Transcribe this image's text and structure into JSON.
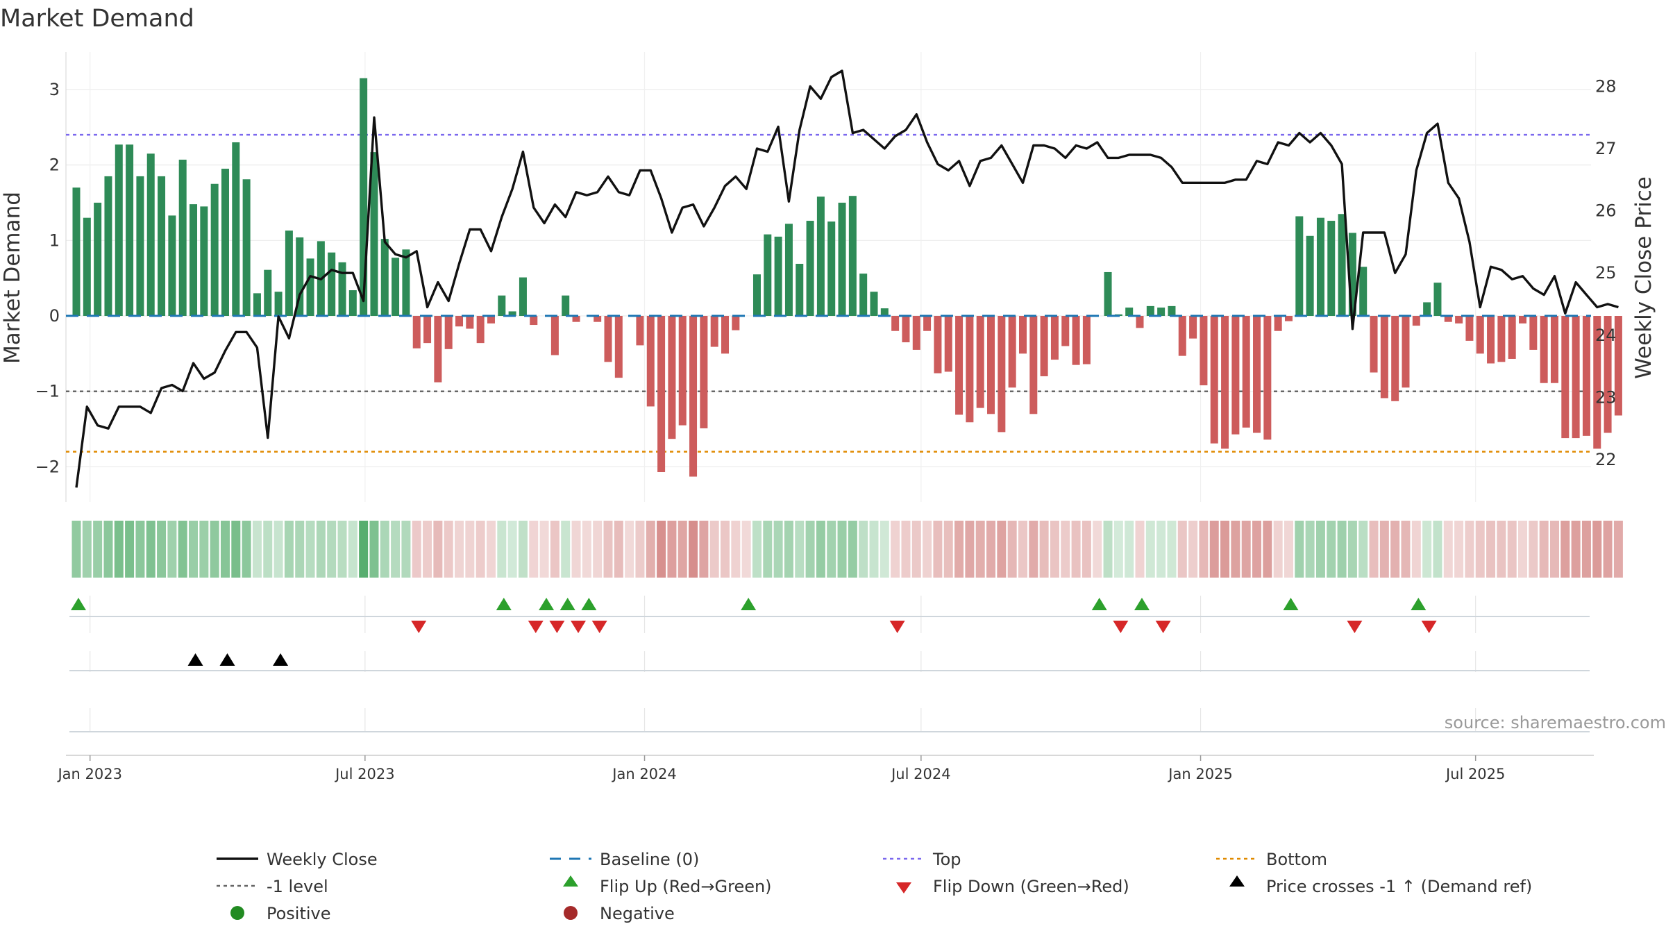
{
  "chart_data": {
    "type": "bar",
    "title": "Market Demand",
    "ylabel": "Market Demand",
    "y2label": "Weekly Close Price",
    "ylim": [
      -2.45,
      3.45
    ],
    "y2lim": [
      21.6,
      28.4
    ],
    "yticks": [
      3,
      2,
      1,
      0,
      -1,
      -2
    ],
    "ytick_labels": [
      "3",
      "2",
      "1",
      "0",
      "−1",
      "−2"
    ],
    "y2ticks": [
      28,
      27,
      26,
      25,
      24,
      23,
      22
    ],
    "x_start": "2022-12-23",
    "week_days": 7,
    "x_ticks": [
      {
        "label": "Jan 2023",
        "date": "2023-01-01"
      },
      {
        "label": "Jul 2023",
        "date": "2023-07-01"
      },
      {
        "label": "Jan 2024",
        "date": "2024-01-01"
      },
      {
        "label": "Jul 2024",
        "date": "2024-07-01"
      },
      {
        "label": "Jan 2025",
        "date": "2025-01-01"
      },
      {
        "label": "Jul 2025",
        "date": "2025-07-01"
      }
    ],
    "levels": {
      "baseline": 0,
      "top": 2.4,
      "minus_one": -1,
      "bottom": -1.8
    },
    "colors": {
      "positive": "#2e8b57",
      "negative": "#cd5c5c",
      "price": "#111111",
      "baseline": "#1f77b4",
      "top": "#7b68ee",
      "minus_one": "#666666",
      "bottom": "#e08a00",
      "flip_up": "#2ca02c",
      "flip_down": "#d62728",
      "cross": "#000000"
    },
    "series": [
      {
        "name": "Market Demand",
        "values": [
          1.7,
          1.3,
          1.5,
          1.85,
          2.27,
          2.27,
          1.85,
          2.15,
          1.85,
          1.33,
          2.07,
          1.48,
          1.45,
          1.75,
          1.95,
          2.3,
          1.81,
          0.3,
          0.61,
          0.32,
          1.13,
          1.04,
          0.76,
          0.99,
          0.84,
          0.71,
          0.34,
          3.15,
          2.17,
          1.02,
          0.77,
          0.88,
          -0.43,
          -0.36,
          -0.88,
          -0.44,
          -0.14,
          -0.17,
          -0.36,
          -0.1,
          0.27,
          0.06,
          0.51,
          -0.12,
          0,
          -0.52,
          0.27,
          -0.08,
          0,
          -0.08,
          -0.61,
          -0.82,
          0,
          -0.39,
          -1.2,
          -2.07,
          -1.63,
          -1.45,
          -2.13,
          -1.49,
          -0.41,
          -0.5,
          -0.19,
          0,
          0.55,
          1.08,
          1.05,
          1.22,
          0.69,
          1.26,
          1.58,
          1.25,
          1.5,
          1.59,
          0.56,
          0.32,
          0.1,
          -0.2,
          -0.35,
          -0.45,
          -0.2,
          -0.76,
          -0.74,
          -1.31,
          -1.41,
          -1.22,
          -1.3,
          -1.54,
          -0.95,
          -0.5,
          -1.3,
          -0.8,
          -0.58,
          -0.4,
          -0.65,
          -0.64,
          0,
          0.58,
          0.02,
          0.11,
          -0.16,
          0.13,
          0.11,
          0.13,
          -0.53,
          -0.3,
          -0.92,
          -1.69,
          -1.76,
          -1.57,
          -1.48,
          -1.55,
          -1.64,
          -0.2,
          -0.07,
          1.32,
          1.06,
          1.3,
          1.26,
          1.35,
          1.1,
          0.65,
          -0.75,
          -1.09,
          -1.13,
          -0.95,
          -0.13,
          0.18,
          0.44,
          -0.08,
          -0.1,
          -0.33,
          -0.5,
          -0.63,
          -0.61,
          -0.57,
          -0.1,
          -0.45,
          -0.89,
          -0.89,
          -1.62,
          -1.62,
          -1.59,
          -1.76,
          -1.55,
          -1.32
        ]
      },
      {
        "name": "Weekly Close",
        "values": [
          21.55,
          22.85,
          22.55,
          22.5,
          22.85,
          22.85,
          22.85,
          22.75,
          23.15,
          23.2,
          23.1,
          23.55,
          23.3,
          23.4,
          23.75,
          24.05,
          24.05,
          23.8,
          22.35,
          24.3,
          23.95,
          24.65,
          24.95,
          24.9,
          25.05,
          25.0,
          25.0,
          24.55,
          27.5,
          25.5,
          25.3,
          25.25,
          25.35,
          24.45,
          24.85,
          24.55,
          25.15,
          25.7,
          25.7,
          25.35,
          25.9,
          26.35,
          26.95,
          26.05,
          25.8,
          26.1,
          25.9,
          26.3,
          26.25,
          26.3,
          26.55,
          26.3,
          26.25,
          26.65,
          26.65,
          26.2,
          25.65,
          26.05,
          26.1,
          25.75,
          26.05,
          26.4,
          26.55,
          26.35,
          27.0,
          26.95,
          27.35,
          26.15,
          27.3,
          28.0,
          27.8,
          28.15,
          28.25,
          27.25,
          27.3,
          27.15,
          27.0,
          27.2,
          27.3,
          27.55,
          27.1,
          26.75,
          26.65,
          26.8,
          26.4,
          26.8,
          26.85,
          27.05,
          26.75,
          26.45,
          27.05,
          27.05,
          27.0,
          26.85,
          27.05,
          27.0,
          27.1,
          26.85,
          26.85,
          26.9,
          26.9,
          26.9,
          26.85,
          26.7,
          26.45,
          26.45,
          26.45,
          26.45,
          26.45,
          26.5,
          26.5,
          26.8,
          26.75,
          27.1,
          27.05,
          27.25,
          27.1,
          27.25,
          27.05,
          26.75,
          24.1,
          25.65,
          25.65,
          25.65,
          25.0,
          25.3,
          26.65,
          27.25,
          27.4,
          26.45,
          26.2,
          25.5,
          24.45,
          25.1,
          25.05,
          24.9,
          24.95,
          24.75,
          24.65,
          24.95,
          24.35,
          24.85,
          24.65,
          24.45,
          24.5,
          24.45
        ]
      }
    ],
    "flip_up_weeks": [
      0,
      40,
      44,
      46,
      48,
      63,
      96,
      100,
      114,
      126
    ],
    "flip_down_weeks": [
      32,
      43,
      45,
      47,
      49,
      77,
      98,
      102,
      120,
      127
    ],
    "cross_weeks": [
      11,
      14,
      19
    ],
    "legend": [
      "Weekly Close",
      "Baseline (0)",
      "Top",
      "Bottom",
      "-1 level",
      "Flip Up (Red→Green)",
      "Flip Down (Green→Red)",
      "Price crosses -1 ↑ (Demand ref)",
      "Positive",
      "Negative"
    ],
    "source": "source: sharemaestro.com"
  }
}
